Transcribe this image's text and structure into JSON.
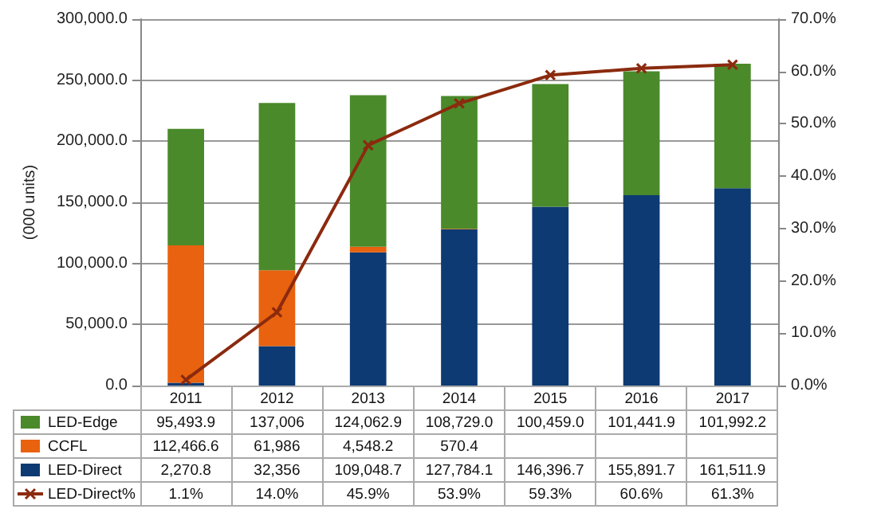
{
  "chart_data": {
    "type": "bar",
    "stacked": true,
    "ylabel": "(000 units)",
    "categories": [
      "2011",
      "2012",
      "2013",
      "2014",
      "2015",
      "2016",
      "2017"
    ],
    "series": [
      {
        "name": "LED-Direct",
        "color": "#0d3a73",
        "values": [
          2270.8,
          32356,
          109048.7,
          127784.1,
          146396.7,
          155891.7,
          161511.9
        ],
        "value_labels": [
          "2,270.8",
          "32,356",
          "109,048.7",
          "127,784.1",
          "146,396.7",
          "155,891.7",
          "161,511.9"
        ]
      },
      {
        "name": "CCFL",
        "color": "#e8620f",
        "values": [
          112466.6,
          61986,
          4548.2,
          570.4,
          null,
          null,
          null
        ],
        "value_labels": [
          "112,466.6",
          "61,986",
          "4,548.2",
          "570.4",
          null,
          null,
          null
        ]
      },
      {
        "name": "LED-Edge",
        "color": "#4a8a2a",
        "values": [
          95493.9,
          137006,
          124062.9,
          108729.0,
          100459.0,
          101441.9,
          101992.2
        ],
        "value_labels": [
          "95,493.9",
          "137,006",
          "124,062.9",
          "108,729.0",
          "100,459.0",
          "101,441.9",
          "101,992.2"
        ]
      },
      {
        "name": "LED-Direct%",
        "type": "line",
        "axis": "y2",
        "color": "#8b2a0e",
        "marker": "cross",
        "values": [
          1.1,
          14.0,
          45.9,
          53.9,
          59.3,
          60.6,
          61.3
        ],
        "value_labels": [
          "1.1%",
          "14.0%",
          "45.9%",
          "53.9%",
          "59.3%",
          "60.6%",
          "61.3%"
        ]
      }
    ],
    "ylim": [
      0,
      300000
    ],
    "yticks": [
      {
        "value": 0,
        "label": "0.0"
      },
      {
        "value": 50000,
        "label": "50,000.0"
      },
      {
        "value": 100000,
        "label": "100,000.0"
      },
      {
        "value": 150000,
        "label": "150,000.0"
      },
      {
        "value": 200000,
        "label": "200,000.0"
      },
      {
        "value": 250000,
        "label": "250,000.0"
      },
      {
        "value": 300000,
        "label": "300,000.0"
      }
    ],
    "y2lim": [
      0,
      70
    ],
    "y2ticks": [
      {
        "value": 0,
        "label": "0.0%"
      },
      {
        "value": 10,
        "label": "10.0%"
      },
      {
        "value": 20,
        "label": "20.0%"
      },
      {
        "value": 30,
        "label": "30.0%"
      },
      {
        "value": 40,
        "label": "40.0%"
      },
      {
        "value": 50,
        "label": "50.0%"
      },
      {
        "value": 60,
        "label": "60.0%"
      },
      {
        "value": 70,
        "label": "70.0%"
      }
    ],
    "grid": "y",
    "legend": "bottom"
  }
}
